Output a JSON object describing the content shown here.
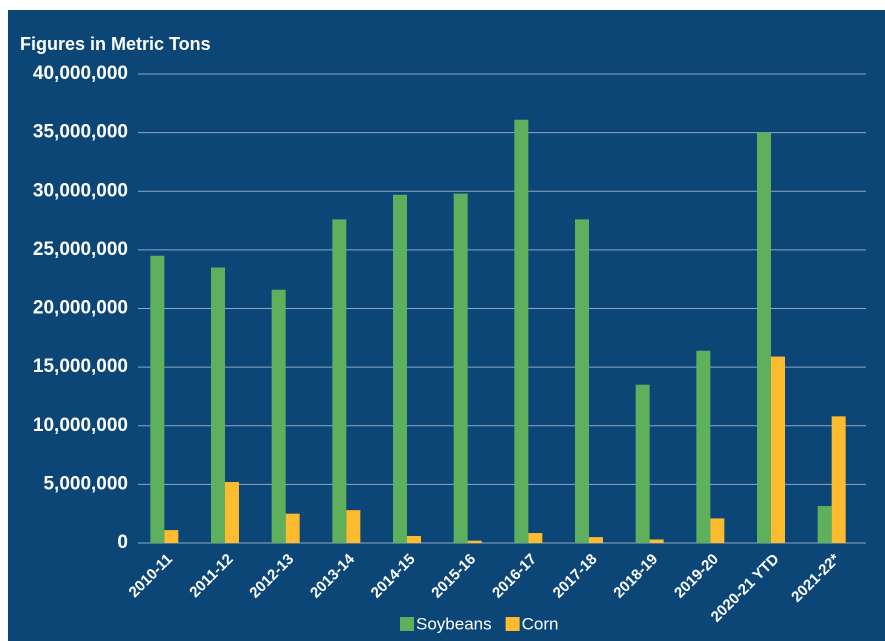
{
  "chart_data": {
    "type": "bar",
    "title": "Figures in Metric Tons",
    "categories": [
      "2010-11",
      "2011-12",
      "2012-13",
      "2013-14",
      "2014-15",
      "2015-16",
      "2016-17",
      "2017-18",
      "2018-19",
      "2019-20",
      "2020-21 YTD",
      "2021-22*"
    ],
    "series": [
      {
        "name": "Soybeans",
        "color": "#5fb05c",
        "values": [
          24500000,
          23500000,
          21600000,
          27600000,
          29700000,
          29800000,
          36100000,
          27600000,
          13500000,
          16400000,
          35000000,
          3150000
        ]
      },
      {
        "name": "Corn",
        "color": "#fdbb30",
        "values": [
          1100000,
          5200000,
          2500000,
          2800000,
          600000,
          200000,
          850000,
          500000,
          300000,
          2100000,
          15900000,
          10800000
        ]
      }
    ],
    "ylim": [
      0,
      40000000
    ],
    "yticks": [
      0,
      {
        "value": 5000000,
        "label": "5,000,000"
      },
      {
        "value": 10000000,
        "label": "10,000,000"
      },
      {
        "value": 15000000,
        "label": "15,000,000"
      },
      {
        "value": 20000000,
        "label": "20,000,000"
      },
      {
        "value": 25000000,
        "label": "25,000,000"
      },
      {
        "value": 30000000,
        "label": "30,000,000"
      },
      {
        "value": 35000000,
        "label": "35,000,000"
      },
      {
        "value": 40000000,
        "label": "40,000,000"
      }
    ],
    "grid": true,
    "legend": "bottom"
  }
}
